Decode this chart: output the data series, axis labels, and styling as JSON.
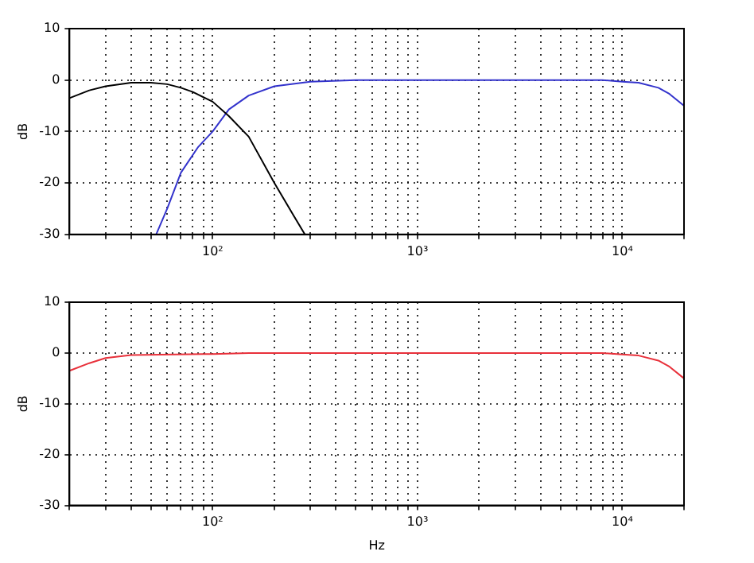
{
  "chart_data": [
    {
      "type": "line",
      "ylabel": "dB",
      "log": "x",
      "grid": true,
      "legend": false,
      "marker": "none",
      "line_style": "solid",
      "xlim": [
        20,
        20000
      ],
      "ylim": [
        -30,
        10
      ],
      "yticks": [
        -30,
        -20,
        -10,
        0,
        10
      ],
      "xticks": [
        {
          "value": 20,
          "label": null
        },
        {
          "value": 30,
          "label": null
        },
        {
          "value": 40,
          "label": null
        },
        {
          "value": 50,
          "label": null
        },
        {
          "value": 60,
          "label": null
        },
        {
          "value": 70,
          "label": null
        },
        {
          "value": 80,
          "label": null
        },
        {
          "value": 90,
          "label": null
        },
        {
          "value": 100,
          "label": "10²"
        },
        {
          "value": 200,
          "label": null
        },
        {
          "value": 300,
          "label": null
        },
        {
          "value": 400,
          "label": null
        },
        {
          "value": 500,
          "label": null
        },
        {
          "value": 600,
          "label": null
        },
        {
          "value": 700,
          "label": null
        },
        {
          "value": 800,
          "label": null
        },
        {
          "value": 900,
          "label": null
        },
        {
          "value": 1000,
          "label": "10³"
        },
        {
          "value": 2000,
          "label": null
        },
        {
          "value": 3000,
          "label": null
        },
        {
          "value": 4000,
          "label": null
        },
        {
          "value": 5000,
          "label": null
        },
        {
          "value": 6000,
          "label": null
        },
        {
          "value": 7000,
          "label": null
        },
        {
          "value": 8000,
          "label": null
        },
        {
          "value": 9000,
          "label": null
        },
        {
          "value": 10000,
          "label": "10⁴"
        },
        {
          "value": 20000,
          "label": null
        }
      ],
      "series": [
        {
          "color": "#000000",
          "x": [
            20,
            25,
            30,
            40,
            50,
            60,
            70,
            80,
            100,
            120,
            150,
            200,
            250,
            282
          ],
          "values": [
            -3.5,
            -2,
            -1.2,
            -0.5,
            -0.5,
            -0.8,
            -1.5,
            -2.3,
            -4.2,
            -7,
            -11,
            -20,
            -26.5,
            -30
          ]
        },
        {
          "color": "#3333cc",
          "x": [
            53,
            60,
            70,
            85,
            100,
            120,
            150,
            200,
            300,
            500,
            1000,
            5000,
            8000,
            10000,
            12000,
            15000,
            17000,
            20000
          ],
          "values": [
            -30,
            -25,
            -18,
            -13,
            -10,
            -5.7,
            -3,
            -1.2,
            -0.3,
            0,
            0,
            0,
            0,
            -0.3,
            -0.5,
            -1.5,
            -2.7,
            -5
          ]
        }
      ]
    },
    {
      "type": "line",
      "xlabel": "Hz",
      "ylabel": "dB",
      "log": "x",
      "grid": true,
      "legend": false,
      "marker": "none",
      "line_style": "solid",
      "xlim": [
        20,
        20000
      ],
      "ylim": [
        -30,
        10
      ],
      "yticks": [
        -30,
        -20,
        -10,
        0,
        10
      ],
      "xticks": [
        {
          "value": 20,
          "label": null
        },
        {
          "value": 30,
          "label": null
        },
        {
          "value": 40,
          "label": null
        },
        {
          "value": 50,
          "label": null
        },
        {
          "value": 60,
          "label": null
        },
        {
          "value": 70,
          "label": null
        },
        {
          "value": 80,
          "label": null
        },
        {
          "value": 90,
          "label": null
        },
        {
          "value": 100,
          "label": "10²"
        },
        {
          "value": 200,
          "label": null
        },
        {
          "value": 300,
          "label": null
        },
        {
          "value": 400,
          "label": null
        },
        {
          "value": 500,
          "label": null
        },
        {
          "value": 600,
          "label": null
        },
        {
          "value": 700,
          "label": null
        },
        {
          "value": 800,
          "label": null
        },
        {
          "value": 900,
          "label": null
        },
        {
          "value": 1000,
          "label": "10³"
        },
        {
          "value": 2000,
          "label": null
        },
        {
          "value": 3000,
          "label": null
        },
        {
          "value": 4000,
          "label": null
        },
        {
          "value": 5000,
          "label": null
        },
        {
          "value": 6000,
          "label": null
        },
        {
          "value": 7000,
          "label": null
        },
        {
          "value": 8000,
          "label": null
        },
        {
          "value": 9000,
          "label": null
        },
        {
          "value": 10000,
          "label": "10⁴"
        },
        {
          "value": 20000,
          "label": null
        }
      ],
      "series": [
        {
          "color": "#e8303a",
          "x": [
            20,
            25,
            30,
            40,
            100,
            150,
            1000,
            5000,
            8000,
            10000,
            12000,
            15000,
            17000,
            20000
          ],
          "values": [
            -3.5,
            -2,
            -1,
            -0.4,
            -0.2,
            0,
            0,
            0,
            0,
            -0.3,
            -0.5,
            -1.5,
            -2.7,
            -5
          ]
        }
      ]
    }
  ]
}
